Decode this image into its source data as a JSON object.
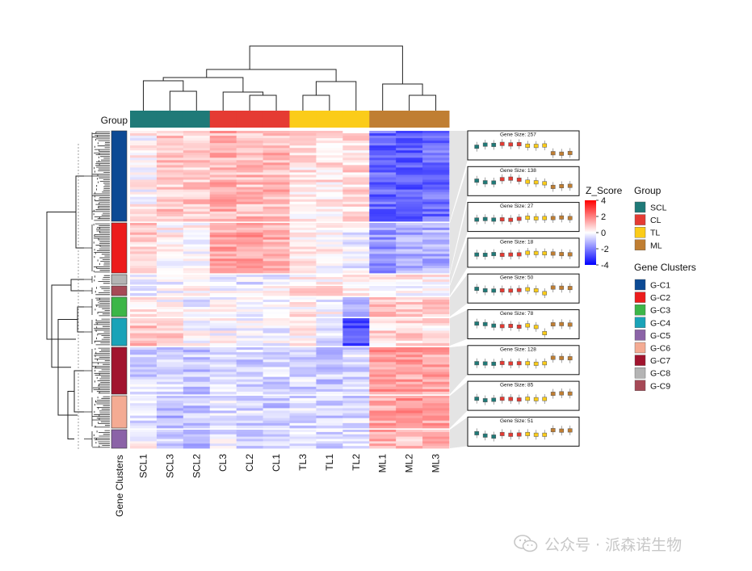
{
  "chart_data": {
    "type": "heatmap",
    "title": "",
    "samples_in_column_order": [
      "SCL1",
      "SCL3",
      "SCL2",
      "CL3",
      "CL2",
      "CL1",
      "TL3",
      "TL1",
      "TL2",
      "ML1",
      "ML2",
      "ML3"
    ],
    "sample_groups": [
      "SCL",
      "SCL",
      "SCL",
      "CL",
      "CL",
      "CL",
      "TL",
      "TL",
      "TL",
      "ML",
      "ML",
      "ML"
    ],
    "annotation_titles": {
      "column": "Group",
      "row": "Gene Clusters"
    },
    "color_scale": {
      "title": "Z_Score",
      "ticks": [
        "4",
        "2",
        "0",
        "-2",
        "-4"
      ],
      "low": "#0000ff",
      "mid": "#ffffff",
      "high": "#ff0000"
    },
    "group_legend": {
      "title": "Group",
      "entries": [
        {
          "label": "SCL",
          "color": "#1f7a78"
        },
        {
          "label": "CL",
          "color": "#e53b33"
        },
        {
          "label": "TL",
          "color": "#fbcc19"
        },
        {
          "label": "ML",
          "color": "#c07e32"
        }
      ]
    },
    "cluster_legend": {
      "title": "Gene Clusters",
      "entries": [
        {
          "label": "G-C1",
          "color": "#0c4a94"
        },
        {
          "label": "G-C2",
          "color": "#ec1c1c"
        },
        {
          "label": "G-C3",
          "color": "#3cb648"
        },
        {
          "label": "G-C4",
          "color": "#1aa3b8"
        },
        {
          "label": "G-C5",
          "color": "#8b63a7"
        },
        {
          "label": "G-C6",
          "color": "#f4ab93"
        },
        {
          "label": "G-C7",
          "color": "#a1142e"
        },
        {
          "label": "G-C8",
          "color": "#b4b4b4"
        },
        {
          "label": "G-C9",
          "color": "#a64956"
        }
      ]
    },
    "row_clusters_top_to_bottom": [
      {
        "cluster": "G-C1",
        "gene_size": 257,
        "mean_z": [
          0.1,
          0.9,
          0.8,
          1.2,
          1.0,
          1.1,
          0.5,
          0.4,
          0.6,
          -2.4,
          -2.6,
          -2.3
        ]
      },
      {
        "cluster": "G-C2",
        "gene_size": 138,
        "mean_z": [
          0.8,
          0.2,
          0.1,
          1.4,
          1.6,
          1.2,
          0.4,
          0.2,
          -0.2,
          -1.6,
          -1.3,
          -1.2
        ]
      },
      {
        "cluster": "G-C8",
        "gene_size": 27,
        "mean_z": [
          -0.4,
          -0.2,
          -0.4,
          -0.3,
          -0.5,
          -0.1,
          0.3,
          0.1,
          0.2,
          0.2,
          0.4,
          0.2
        ]
      },
      {
        "cluster": "G-C9",
        "gene_size": 18,
        "mean_z": [
          -0.1,
          -0.2,
          0.1,
          -0.2,
          -0.1,
          0.0,
          0.6,
          0.5,
          0.4,
          0.3,
          0.1,
          0.0
        ]
      },
      {
        "cluster": "G-C3",
        "gene_size": 50,
        "mean_z": [
          0.5,
          -0.1,
          -0.2,
          -0.1,
          -0.2,
          0.0,
          0.3,
          -0.1,
          -1.2,
          1.0,
          0.9,
          0.8
        ]
      },
      {
        "cluster": "G-C4",
        "gene_size": 78,
        "mean_z": [
          0.9,
          0.7,
          0.1,
          -0.1,
          0.0,
          -0.3,
          0.2,
          -0.4,
          -2.8,
          0.6,
          0.7,
          0.5
        ]
      },
      {
        "cluster": "G-C7",
        "gene_size": 128,
        "mean_z": [
          -0.6,
          -0.7,
          -0.8,
          -0.5,
          -0.7,
          -0.6,
          -0.6,
          -0.8,
          -0.6,
          1.5,
          1.4,
          1.3
        ]
      },
      {
        "cluster": "G-C6",
        "gene_size": 85,
        "mean_z": [
          -0.5,
          -1.1,
          -0.9,
          -0.5,
          -0.6,
          -0.8,
          -0.5,
          -0.7,
          -0.6,
          1.4,
          1.6,
          1.5
        ]
      },
      {
        "cluster": "G-C5",
        "gene_size": 51,
        "mean_z": [
          0.0,
          -0.9,
          -1.3,
          -0.3,
          -0.6,
          -0.5,
          -0.3,
          -0.6,
          -0.6,
          1.2,
          1.0,
          1.1
        ]
      }
    ],
    "gene_size_label_prefix": "Gene Size: "
  },
  "watermark": {
    "text": "公众号 · 派森诺生物",
    "icon": "wechat-icon"
  }
}
